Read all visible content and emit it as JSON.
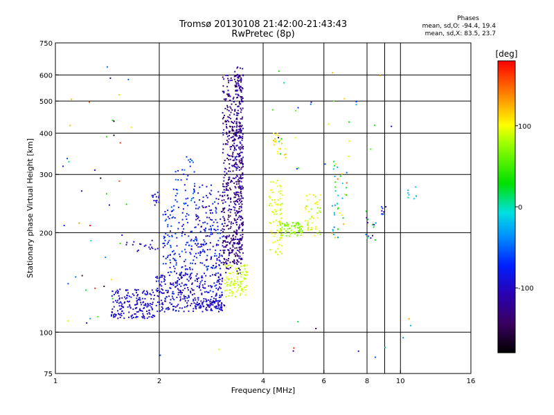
{
  "header": {
    "title": "Tromsø 20130108 21:42:00-21:43:43",
    "subtitle": "RwPretec (8p)"
  },
  "phases": {
    "heading": "Phases",
    "line_o": "mean, sd,O: -94.4, 19.4",
    "line_x": "mean, sd,X: 83.5, 23.7"
  },
  "colorbar": {
    "unit": "[deg]",
    "ticks": [
      "100",
      "0",
      "-100"
    ],
    "tick_values": [
      100,
      0,
      -100
    ],
    "range": [
      -180,
      180
    ]
  },
  "chart_data": {
    "type": "scatter",
    "xlabel": "Frequency [MHz]",
    "ylabel": "Stationary phase Virtual Height [km]",
    "xscale": "log",
    "yscale": "log",
    "xlim": [
      1,
      16
    ],
    "ylim": [
      75,
      750
    ],
    "grid": true,
    "x_ticks": [
      "1",
      "2",
      "4",
      "6",
      "8",
      "10",
      "16"
    ],
    "x_tick_values": [
      1,
      2,
      4,
      6,
      8,
      10,
      16
    ],
    "y_ticks": [
      "750",
      "600",
      "500",
      "400",
      "300",
      "200",
      "100",
      "75"
    ],
    "y_tick_values": [
      750,
      600,
      500,
      400,
      300,
      200,
      100,
      75
    ],
    "x_grid_values": [
      2,
      4,
      6,
      8,
      9,
      10
    ],
    "y_grid_values": [
      600,
      500,
      400,
      300,
      200,
      100
    ],
    "point_clusters": [
      {
        "x": [
          1.45,
          1.95
        ],
        "y": [
          110,
          135
        ],
        "phase": [
          -105,
          -85
        ],
        "density": 180
      },
      {
        "x": [
          1.6,
          2.0
        ],
        "y": [
          175,
          190
        ],
        "phase": [
          -110,
          -95
        ],
        "density": 18
      },
      {
        "x": [
          1.9,
          2.0
        ],
        "y": [
          240,
          265
        ],
        "phase": [
          -100,
          -80
        ],
        "density": 14
      },
      {
        "x": [
          1.95,
          3.05
        ],
        "y": [
          115,
          150
        ],
        "phase": [
          -115,
          -75
        ],
        "density": 320
      },
      {
        "x": [
          2.05,
          3.05
        ],
        "y": [
          150,
          240
        ],
        "phase": [
          -105,
          -55
        ],
        "density": 220
      },
      {
        "x": [
          2.2,
          2.55
        ],
        "y": [
          240,
          340
        ],
        "phase": [
          -90,
          -40
        ],
        "density": 40
      },
      {
        "x": [
          2.6,
          3.1
        ],
        "y": [
          118,
          125
        ],
        "phase": [
          -110,
          -90
        ],
        "density": 40
      },
      {
        "x": [
          2.5,
          3.1
        ],
        "y": [
          160,
          280
        ],
        "phase": [
          -130,
          -60
        ],
        "density": 100
      },
      {
        "x": [
          3.05,
          3.5
        ],
        "y": [
          160,
          600
        ],
        "phase": [
          -155,
          -95
        ],
        "density": 460
      },
      {
        "x": [
          3.3,
          3.5
        ],
        "y": [
          180,
          640
        ],
        "phase": [
          -145,
          -100
        ],
        "density": 180
      },
      {
        "x": [
          3.05,
          3.45
        ],
        "y": [
          150,
          200
        ],
        "phase": [
          -150,
          -110
        ],
        "density": 60
      },
      {
        "x": [
          3.1,
          3.6
        ],
        "y": [
          128,
          160
        ],
        "phase": [
          80,
          100
        ],
        "density": 90
      },
      {
        "x": [
          4.15,
          4.55
        ],
        "y": [
          170,
          290
        ],
        "phase": [
          80,
          105
        ],
        "density": 80
      },
      {
        "x": [
          4.45,
          5.2
        ],
        "y": [
          195,
          215
        ],
        "phase": [
          60,
          85
        ],
        "density": 70
      },
      {
        "x": [
          4.25,
          4.7
        ],
        "y": [
          330,
          400
        ],
        "phase": [
          100,
          125
        ],
        "density": 20
      },
      {
        "x": [
          5.3,
          5.9
        ],
        "y": [
          195,
          265
        ],
        "phase": [
          75,
          110
        ],
        "density": 45
      },
      {
        "x": [
          6.3,
          7.0
        ],
        "y": [
          190,
          330
        ],
        "phase": [
          -60,
          160
        ],
        "density": 40
      },
      {
        "x": [
          7.9,
          8.5
        ],
        "y": [
          180,
          240
        ],
        "phase": [
          -140,
          60
        ],
        "density": 16
      },
      {
        "x": [
          8.7,
          9.1
        ],
        "y": [
          225,
          240
        ],
        "phase": [
          -120,
          -40
        ],
        "density": 8
      },
      {
        "x": [
          10.5,
          11.2
        ],
        "y": [
          240,
          275
        ],
        "phase": [
          -40,
          20
        ],
        "density": 7
      },
      {
        "x": [
          1.05,
          1.7
        ],
        "y": [
          95,
          660
        ],
        "phase": [
          -180,
          180
        ],
        "density": 42
      },
      {
        "x": [
          4.2,
          9.5
        ],
        "y": [
          300,
          640
        ],
        "phase": [
          -140,
          140
        ],
        "density": 28
      },
      {
        "x": [
          2.0,
          12.5
        ],
        "y": [
          78,
          110
        ],
        "phase": [
          -180,
          180
        ],
        "density": 12
      }
    ]
  }
}
